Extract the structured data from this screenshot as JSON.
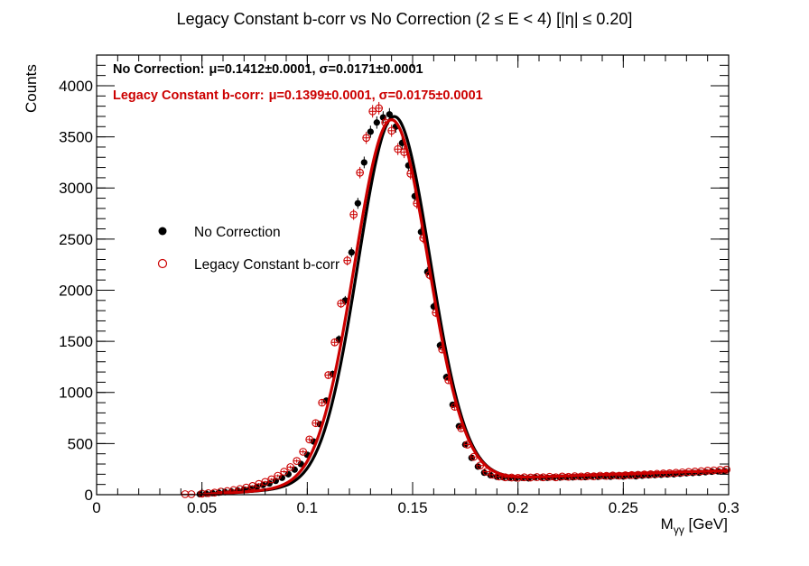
{
  "chart_data": {
    "type": "scatter",
    "title": "Legacy Constant b-corr vs No Correction   (2 ≤ E < 4)   [|η| ≤ 0.20]",
    "xlabel": "M",
    "xlabel_sub": "γγ",
    "xlabel_unit": " [GeV]",
    "ylabel": "Counts",
    "xlim": [
      0,
      0.3
    ],
    "ylim": [
      0,
      4300
    ],
    "x_ticks": [
      0,
      0.05,
      0.1,
      0.15,
      0.2,
      0.25,
      0.3
    ],
    "x_tick_labels": [
      "0",
      "0.05",
      "0.1",
      "0.15",
      "0.2",
      "0.25",
      "0.3"
    ],
    "y_ticks": [
      0,
      500,
      1000,
      1500,
      2000,
      2500,
      3000,
      3500,
      4000
    ],
    "y_tick_labels": [
      "0",
      "500",
      "1000",
      "1500",
      "2000",
      "2500",
      "3000",
      "3500",
      "4000"
    ],
    "grid": false,
    "legend_position": "left-middle",
    "series": [
      {
        "name": "No Correction",
        "marker": "filled-circle",
        "color": "#000000",
        "fit_label": "No Correction:",
        "fit_stats": "μ=0.1412±0.0001, σ=0.0171±0.0001",
        "fit": {
          "amplitude": 3590,
          "mean": 0.1412,
          "sigma": 0.0171
        },
        "x": [
          0.049,
          0.052,
          0.055,
          0.058,
          0.061,
          0.064,
          0.067,
          0.07,
          0.073,
          0.076,
          0.079,
          0.082,
          0.085,
          0.088,
          0.091,
          0.094,
          0.097,
          0.1,
          0.103,
          0.106,
          0.109,
          0.112,
          0.115,
          0.118,
          0.121,
          0.124,
          0.127,
          0.13,
          0.133,
          0.136,
          0.139,
          0.142,
          0.145,
          0.148,
          0.151,
          0.154,
          0.157,
          0.16,
          0.163,
          0.166,
          0.169,
          0.172,
          0.175,
          0.178,
          0.181,
          0.184,
          0.187,
          0.19,
          0.193,
          0.196,
          0.199,
          0.202,
          0.205,
          0.208,
          0.211,
          0.214,
          0.217,
          0.22,
          0.223,
          0.226,
          0.229,
          0.232,
          0.235,
          0.238,
          0.241,
          0.244,
          0.247,
          0.25,
          0.253,
          0.256,
          0.259,
          0.262,
          0.265,
          0.268,
          0.271,
          0.274,
          0.277,
          0.28,
          0.283,
          0.286,
          0.289,
          0.292,
          0.295,
          0.298
        ],
        "y": [
          5,
          10,
          15,
          20,
          25,
          30,
          40,
          50,
          60,
          75,
          95,
          110,
          135,
          165,
          200,
          245,
          300,
          390,
          520,
          690,
          920,
          1180,
          1520,
          1900,
          2370,
          2850,
          3250,
          3550,
          3640,
          3690,
          3720,
          3600,
          3440,
          3220,
          2920,
          2570,
          2180,
          1840,
          1460,
          1150,
          880,
          670,
          490,
          360,
          275,
          215,
          190,
          175,
          170,
          165,
          160,
          165,
          160,
          170,
          168,
          165,
          170,
          168,
          172,
          170,
          175,
          172,
          178,
          175,
          180,
          176,
          182,
          178,
          185,
          180,
          186,
          190,
          192,
          195,
          198,
          200,
          205,
          210,
          212,
          215,
          220,
          225,
          228,
          230
        ]
      },
      {
        "name": "Legacy Constant b-corr",
        "marker": "open-circle",
        "color": "#cc0000",
        "fit_label": "Legacy Constant b-corr:",
        "fit_stats": "μ=0.1399±0.0001, σ=0.0175±0.0001",
        "fit": {
          "amplitude": 3560,
          "mean": 0.1399,
          "sigma": 0.0175
        },
        "x": [
          0.042,
          0.045,
          0.05,
          0.053,
          0.056,
          0.059,
          0.062,
          0.065,
          0.068,
          0.071,
          0.074,
          0.077,
          0.08,
          0.083,
          0.086,
          0.089,
          0.092,
          0.095,
          0.098,
          0.101,
          0.104,
          0.107,
          0.11,
          0.113,
          0.116,
          0.119,
          0.122,
          0.125,
          0.128,
          0.131,
          0.134,
          0.137,
          0.14,
          0.143,
          0.146,
          0.149,
          0.152,
          0.155,
          0.158,
          0.161,
          0.164,
          0.167,
          0.17,
          0.173,
          0.176,
          0.179,
          0.182,
          0.185,
          0.188,
          0.191,
          0.194,
          0.197,
          0.2,
          0.203,
          0.206,
          0.209,
          0.212,
          0.215,
          0.218,
          0.221,
          0.224,
          0.227,
          0.23,
          0.233,
          0.236,
          0.239,
          0.242,
          0.245,
          0.248,
          0.251,
          0.254,
          0.257,
          0.26,
          0.263,
          0.266,
          0.269,
          0.272,
          0.275,
          0.278,
          0.281,
          0.284,
          0.287,
          0.29,
          0.293,
          0.296,
          0.299
        ],
        "y": [
          5,
          5,
          10,
          15,
          20,
          30,
          35,
          45,
          55,
          70,
          85,
          105,
          125,
          150,
          185,
          225,
          270,
          330,
          420,
          540,
          700,
          900,
          1170,
          1490,
          1870,
          2290,
          2740,
          3150,
          3490,
          3750,
          3780,
          3640,
          3560,
          3380,
          3350,
          3140,
          2850,
          2510,
          2150,
          1780,
          1420,
          1120,
          860,
          650,
          490,
          370,
          285,
          225,
          195,
          178,
          170,
          168,
          165,
          170,
          168,
          172,
          170,
          175,
          170,
          178,
          175,
          180,
          178,
          182,
          180,
          186,
          184,
          188,
          186,
          190,
          192,
          195,
          198,
          200,
          204,
          208,
          210,
          214,
          218,
          222,
          226,
          230,
          235,
          238,
          242,
          245
        ]
      }
    ]
  }
}
